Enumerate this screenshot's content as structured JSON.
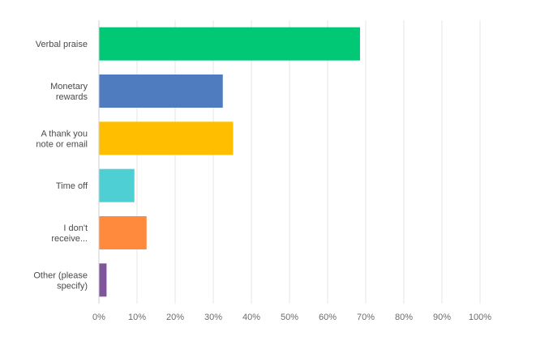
{
  "chart_data": {
    "type": "bar",
    "orientation": "horizontal",
    "categories": [
      [
        "Verbal praise"
      ],
      [
        "Monetary",
        "rewards"
      ],
      [
        "A thank you",
        "note or email"
      ],
      [
        "Time off"
      ],
      [
        "I don't",
        "receive..."
      ],
      [
        "Other (please",
        "specify)"
      ]
    ],
    "values": [
      68.5,
      32.5,
      35.2,
      9.3,
      12.5,
      2.0
    ],
    "colors": [
      "#00c875",
      "#4f7bbf",
      "#ffbf00",
      "#4ecfd3",
      "#ff8a3d",
      "#7f569b"
    ],
    "xlim": [
      0,
      100
    ],
    "xticks": [
      0,
      10,
      20,
      30,
      40,
      50,
      60,
      70,
      80,
      90,
      100
    ],
    "tick_suffix": "%",
    "grid": true,
    "gridline_color": "#e6e6e6",
    "axis_color": "#cfcfcf"
  }
}
